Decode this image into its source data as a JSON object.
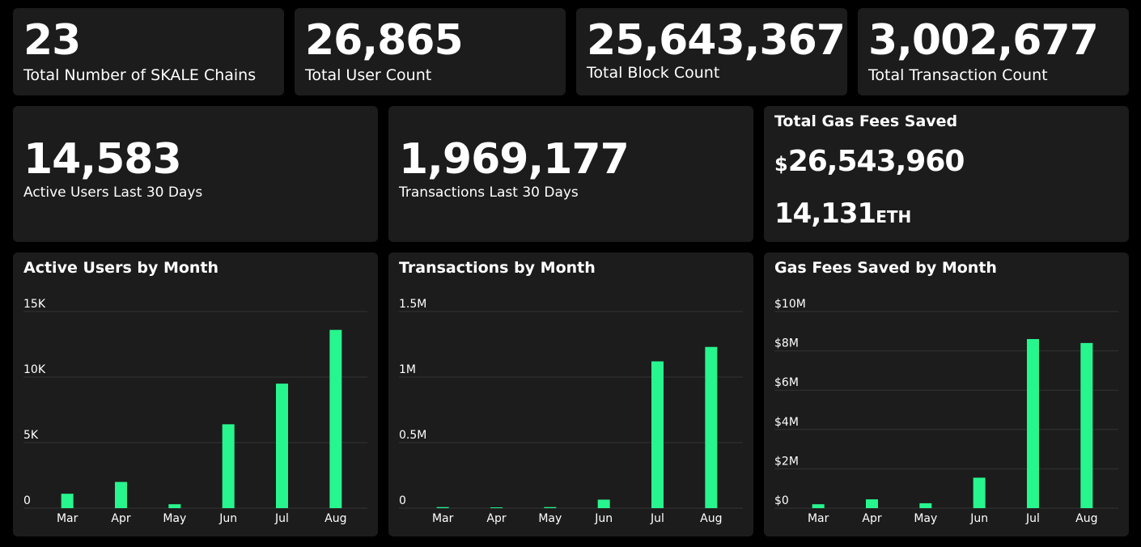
{
  "colors": {
    "background": "#000000",
    "card": "#1c1c1c",
    "bar": "#27f58e",
    "grid": "#333333",
    "text": "#ffffff"
  },
  "stats": {
    "chains": {
      "value": "23",
      "label": "Total Number of SKALE Chains"
    },
    "users": {
      "value": "26,865",
      "label": "Total User Count"
    },
    "blocks": {
      "value": "25,643,367",
      "label": "Total Block Count"
    },
    "transactions": {
      "value": "3,002,677",
      "label": "Total Transaction Count"
    },
    "active_users_30d": {
      "value": "14,583",
      "label": "Active Users Last 30 Days"
    },
    "transactions_30d": {
      "value": "1,969,177",
      "label": "Transactions Last 30 Days"
    }
  },
  "gas": {
    "title": "Total Gas Fees Saved",
    "usd_symbol": "$",
    "usd_value": "26,543,960",
    "eth_value": "14,131",
    "eth_unit": "ETH"
  },
  "chart_data": [
    {
      "type": "bar",
      "title": "Active Users by Month",
      "categories": [
        "Mar",
        "Apr",
        "May",
        "Jun",
        "Jul",
        "Aug"
      ],
      "values": [
        1100,
        2000,
        300,
        6400,
        9500,
        13600
      ],
      "yticks": [
        0,
        5000,
        10000,
        15000
      ],
      "ytick_labels": [
        "0",
        "5K",
        "10K",
        "15K"
      ],
      "ylim": [
        0,
        15000
      ],
      "xlabel": "",
      "ylabel": ""
    },
    {
      "type": "bar",
      "title": "Transactions by Month",
      "categories": [
        "Mar",
        "Apr",
        "May",
        "Jun",
        "Jul",
        "Aug"
      ],
      "values": [
        8000,
        6000,
        8000,
        65000,
        1120000,
        1230000
      ],
      "yticks": [
        0,
        500000,
        1000000,
        1500000
      ],
      "ytick_labels": [
        "0",
        "0.5M",
        "1M",
        "1.5M"
      ],
      "ylim": [
        0,
        1500000
      ],
      "xlabel": "",
      "ylabel": ""
    },
    {
      "type": "bar",
      "title": "Gas Fees Saved by Month",
      "categories": [
        "Mar",
        "Apr",
        "May",
        "Jun",
        "Jul",
        "Aug"
      ],
      "values": [
        200000,
        450000,
        250000,
        1550000,
        8600000,
        8400000
      ],
      "yticks": [
        0,
        2000000,
        4000000,
        6000000,
        8000000,
        10000000
      ],
      "ytick_labels": [
        "$0",
        "$2M",
        "$4M",
        "$6M",
        "$8M",
        "$10M"
      ],
      "ylim": [
        0,
        10000000
      ],
      "xlabel": "",
      "ylabel": ""
    }
  ]
}
